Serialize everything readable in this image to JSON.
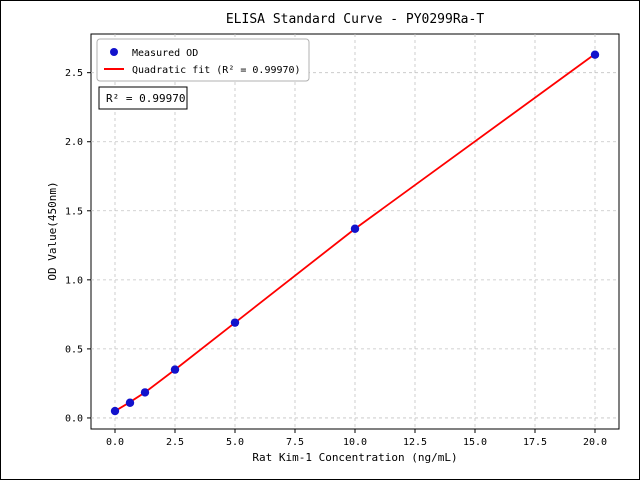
{
  "chart_data": {
    "type": "scatter",
    "title": "ELISA Standard Curve - PY0299Ra-T",
    "xlabel": "Rat Kim-1 Concentration (ng/mL)",
    "ylabel": "OD Value(450nm)",
    "xlim": [
      -1,
      21
    ],
    "ylim": [
      -0.08,
      2.78
    ],
    "grid": true,
    "legend_position": "upper left",
    "x_ticks": [
      0.0,
      2.5,
      5.0,
      7.5,
      10.0,
      12.5,
      15.0,
      17.5,
      20.0
    ],
    "x_tick_labels": [
      "0.0",
      "2.5",
      "5.0",
      "7.5",
      "10.0",
      "12.5",
      "15.0",
      "17.5",
      "20.0"
    ],
    "y_ticks": [
      0.0,
      0.5,
      1.0,
      1.5,
      2.0,
      2.5
    ],
    "y_tick_labels": [
      "0.0",
      "0.5",
      "1.0",
      "1.5",
      "2.0",
      "2.5"
    ],
    "series": [
      {
        "name": "Quadratic fit (R² = 0.99970)",
        "type": "line",
        "color": "#ff0000",
        "x": [
          0,
          0.625,
          1.25,
          2.5,
          5,
          10,
          20
        ],
        "y": [
          0.05,
          0.115,
          0.185,
          0.35,
          0.69,
          1.37,
          2.635
        ]
      },
      {
        "name": "Measured OD",
        "type": "scatter",
        "color": "#1212cc",
        "x": [
          0,
          0.625,
          1.25,
          2.5,
          5,
          10,
          20
        ],
        "y": [
          0.05,
          0.11,
          0.185,
          0.35,
          0.69,
          1.37,
          2.63
        ]
      }
    ],
    "annotation": "R² = 0.99970",
    "colors": {
      "points": "#1212cc",
      "fit_line": "#ff0000",
      "grid": "#c3c3c3",
      "frame": "#000000"
    }
  }
}
